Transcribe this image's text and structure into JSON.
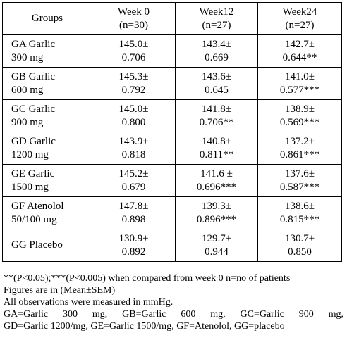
{
  "table": {
    "headers": [
      {
        "line1": "Groups",
        "line2": ""
      },
      {
        "line1": "Week 0",
        "line2": "(n=30)"
      },
      {
        "line1": "Week12",
        "line2": "(n=27)"
      },
      {
        "line1": "Week24",
        "line2": "(n=27)"
      }
    ],
    "rows": [
      {
        "group": {
          "line1": "GA Garlic",
          "line2": "300 mg"
        },
        "cells": [
          {
            "line1": "145.0±",
            "line2": "0.706"
          },
          {
            "line1": "143.4±",
            "line2": "0.669"
          },
          {
            "line1": "142.7±",
            "line2": "0.644**"
          }
        ]
      },
      {
        "group": {
          "line1": "GB Garlic",
          "line2": "600 mg"
        },
        "cells": [
          {
            "line1": "145.3±",
            "line2": "0.792"
          },
          {
            "line1": "143.6±",
            "line2": "0.645"
          },
          {
            "line1": "141.0±",
            "line2": "0.577***"
          }
        ]
      },
      {
        "group": {
          "line1": "GC Garlic",
          "line2": "900 mg"
        },
        "cells": [
          {
            "line1": "145.0±",
            "line2": "0.800"
          },
          {
            "line1": "141.8±",
            "line2": "0.706**"
          },
          {
            "line1": "138.9±",
            "line2": "0.569***"
          }
        ]
      },
      {
        "group": {
          "line1": "GD Garlic",
          "line2": "1200 mg"
        },
        "cells": [
          {
            "line1": "143.9±",
            "line2": "0.818"
          },
          {
            "line1": "140.8±",
            "line2": "0.811**"
          },
          {
            "line1": "137.2±",
            "line2": "0.861***"
          }
        ]
      },
      {
        "group": {
          "line1": "GE Garlic",
          "line2": "1500 mg"
        },
        "cells": [
          {
            "line1": "145.2±",
            "line2": "0.679"
          },
          {
            "line1": "141.6 ±",
            "line2": "0.696***"
          },
          {
            "line1": "137.6±",
            "line2": "0.587***"
          }
        ]
      },
      {
        "group": {
          "line1": "GF Atenolol",
          "line2": "50/100 mg"
        },
        "cells": [
          {
            "line1": "147.8±",
            "line2": "0.898"
          },
          {
            "line1": "139.3±",
            "line2": "0.896***"
          },
          {
            "line1": "138.6±",
            "line2": "0.815***"
          }
        ]
      },
      {
        "group": {
          "line1": "GG Placebo",
          "line2": ""
        },
        "cells": [
          {
            "line1": "130.9±",
            "line2": "0.892"
          },
          {
            "line1": "129.7±",
            "line2": "0.944"
          },
          {
            "line1": "130.7±",
            "line2": "0.850"
          }
        ]
      }
    ]
  },
  "notes": {
    "significance": "**(P<0.05);***(P<0.005) when compared from week 0 n=no of patients",
    "figures": "Figures are in (Mean±SEM)",
    "units": "All observations were measured in mmHg.",
    "legend_line1": "GA=Garlic 300 mg, GB=Garlic 600 mg, GC=Garlic 900 mg,",
    "legend_line2": "GD=Garlic 1200/mg, GE=Garlic 1500/mg, GF=Atenolol, GG=placebo"
  }
}
